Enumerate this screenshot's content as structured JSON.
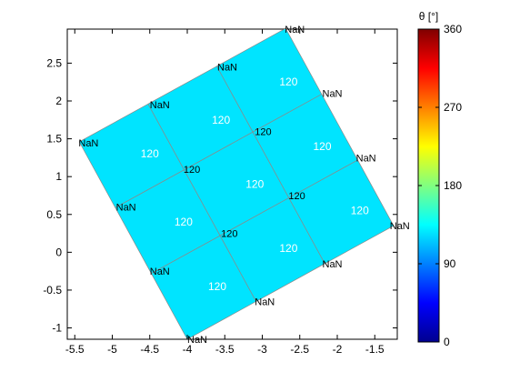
{
  "chart_data": [
    {
      "type": "heatmap",
      "title": "",
      "xlabel": "",
      "ylabel": "",
      "xlim": [
        -5.6,
        -1.2
      ],
      "ylim": [
        -1.15,
        2.95
      ],
      "xticks": [
        "-5.5",
        "-5",
        "-4.5",
        "-4",
        "-3.5",
        "-3",
        "-2.5",
        "-2",
        "-1.5"
      ],
      "xtick_values": [
        -5.5,
        -5,
        -4.5,
        -4,
        -3.5,
        -3,
        -2.5,
        -2,
        -1.5
      ],
      "yticks": [
        "-1",
        "-0.5",
        "0",
        "0.5",
        "1",
        "1.5",
        "2",
        "2.5"
      ],
      "ytick_values": [
        -1,
        -0.5,
        0,
        0.5,
        1,
        1.5,
        2,
        2.5
      ],
      "grid": false,
      "fill_color": "#00e4ff",
      "edge_color": "#8a8a8a",
      "mesh_origin": [
        -4.0,
        -1.15
      ],
      "mesh_u": [
        0.917,
        0.5
      ],
      "mesh_v": [
        -0.48,
        0.87
      ],
      "mesh_size": 3,
      "cells": [
        {
          "x": -3.6,
          "y": -0.45,
          "value": "120"
        },
        {
          "x": -2.65,
          "y": 0.05,
          "value": "120"
        },
        {
          "x": -1.7,
          "y": 0.55,
          "value": "120"
        },
        {
          "x": -4.05,
          "y": 0.4,
          "value": "120"
        },
        {
          "x": -3.1,
          "y": 0.9,
          "value": "120"
        },
        {
          "x": -2.2,
          "y": 1.4,
          "value": "120"
        },
        {
          "x": -4.5,
          "y": 1.3,
          "value": "120"
        },
        {
          "x": -3.55,
          "y": 1.75,
          "value": "120"
        },
        {
          "x": -2.65,
          "y": 2.25,
          "value": "120"
        }
      ],
      "node_labels": [
        {
          "x": -4.0,
          "y": -1.15,
          "text": "NaN"
        },
        {
          "x": -3.1,
          "y": -0.65,
          "text": "NaN"
        },
        {
          "x": -2.2,
          "y": -0.15,
          "text": "NaN"
        },
        {
          "x": -1.3,
          "y": 0.35,
          "text": "NaN"
        },
        {
          "x": -4.5,
          "y": -0.25,
          "text": "NaN"
        },
        {
          "x": -3.55,
          "y": 0.25,
          "text": "120"
        },
        {
          "x": -2.65,
          "y": 0.75,
          "text": "120"
        },
        {
          "x": -1.75,
          "y": 1.25,
          "text": "NaN"
        },
        {
          "x": -4.95,
          "y": 0.6,
          "text": "NaN"
        },
        {
          "x": -4.05,
          "y": 1.1,
          "text": "120"
        },
        {
          "x": -3.1,
          "y": 1.6,
          "text": "120"
        },
        {
          "x": -2.2,
          "y": 2.1,
          "text": "NaN"
        },
        {
          "x": -5.45,
          "y": 1.45,
          "text": "NaN"
        },
        {
          "x": -4.5,
          "y": 1.95,
          "text": "NaN"
        },
        {
          "x": -3.6,
          "y": 2.45,
          "text": "NaN"
        },
        {
          "x": -2.7,
          "y": 2.95,
          "text": "NaN"
        }
      ]
    },
    {
      "type": "colorbar",
      "title": "θ [°]",
      "colormap": "jet",
      "range": [
        0,
        360
      ],
      "ticks": [
        "0",
        "90",
        "180",
        "270",
        "360"
      ],
      "tick_values": [
        0,
        90,
        180,
        270,
        360
      ],
      "colors": [
        "#00008f",
        "#0000ff",
        "#0080ff",
        "#00ffff",
        "#80ff80",
        "#ffff00",
        "#ff8000",
        "#ff0000",
        "#800000"
      ]
    }
  ]
}
